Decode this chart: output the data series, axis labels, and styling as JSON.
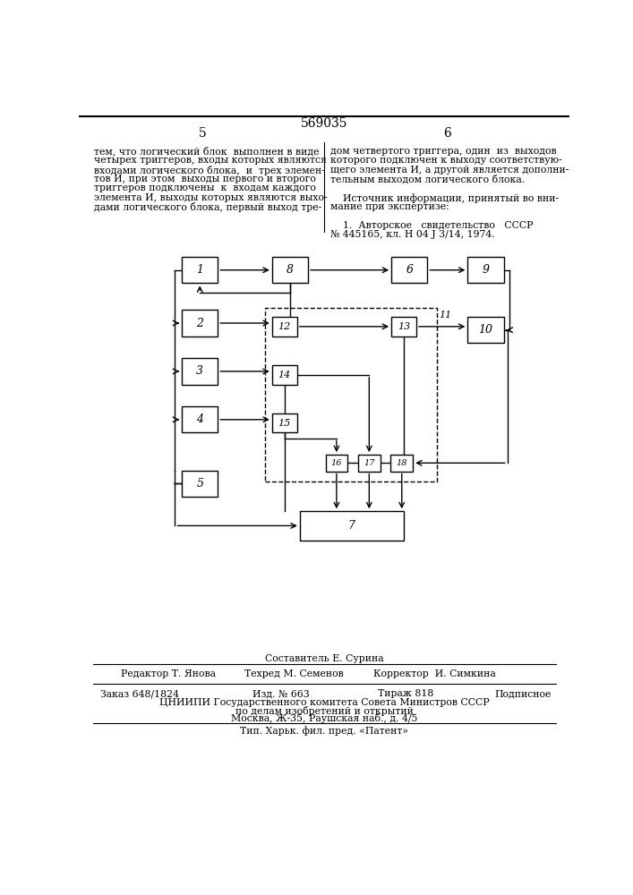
{
  "page_number_center": "569035",
  "page_col_left": "5",
  "page_col_right": "6",
  "footer_compiler": "Составитель Е. Сурина",
  "footer_editor": "Редактор Т. Янова",
  "footer_techred": "Техред М. Семенов",
  "footer_corrector": "Корректор  И. Симкина",
  "footer_order": "Заказ 648/1824",
  "footer_izd": "Изд. № 663",
  "footer_tirazh": "Тираж 818",
  "footer_podpisnoe": "Подписное",
  "footer_cniip": "ЦНИИПИ Государственного комитета Совета Министров СССР",
  "footer_po": "по делам изобретений и открытий",
  "footer_moscow": "Москва, Ж-35, Раушская наб., д. 4/5",
  "footer_tip": "Тип. Харьк. фил. пред. «Патент»",
  "bg_color": "#ffffff"
}
